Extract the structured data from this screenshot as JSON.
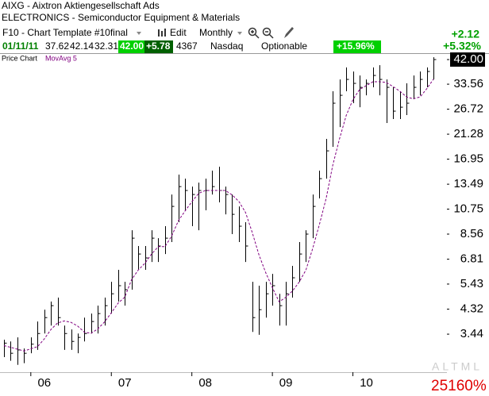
{
  "header": {
    "symbol_line": "AIXG - Aixtron Aktiengesellschaft Ads",
    "industry": "ELECTRONICS - Semiconductor Equipment & Materials",
    "template": "F10 - Chart Template #10final",
    "edit": "Edit",
    "period": "Monthly",
    "change": "+2.12",
    "change_pct": "+5.32%"
  },
  "quote": {
    "date": "01/11/11",
    "open": "37.62",
    "high": "42.14",
    "low": "32.31",
    "last": "42.00",
    "net": "+5.78",
    "volume": "4367",
    "exchange": "Nasdaq",
    "option": "Optionable",
    "pct": "+15.96%"
  },
  "footer": {
    "tools": "ALTML",
    "score": "25160%"
  },
  "chart_data": {
    "type": "ohlc",
    "categories": [
      null,
      null,
      null,
      null,
      "06",
      null,
      null,
      null,
      null,
      null,
      null,
      null,
      null,
      null,
      null,
      null,
      "07",
      null,
      null,
      null,
      null,
      null,
      null,
      null,
      null,
      null,
      null,
      null,
      "08",
      null,
      null,
      null,
      null,
      null,
      null,
      null,
      null,
      null,
      null,
      null,
      "09",
      null,
      null,
      null,
      null,
      null,
      null,
      null,
      null,
      null,
      null,
      null,
      "10",
      null,
      null,
      null,
      null,
      null,
      null,
      null,
      null,
      null,
      null,
      null,
      null
    ],
    "series": [
      {
        "name": "Price Chart",
        "color": "#000000",
        "high": [
          3.27,
          3.22,
          3.34,
          3.02,
          3.34,
          3.86,
          4.3,
          4.63,
          4.8,
          3.72,
          3.59,
          3.46,
          4.0,
          4.15,
          4.46,
          4.8,
          5.54,
          6.18,
          5.54,
          8.87,
          7.68,
          7.68,
          8.87,
          8.25,
          9.2,
          12.28,
          14.72,
          14.19,
          13.2,
          13.69,
          14.19,
          15.26,
          15.82,
          13.2,
          12.28,
          11.02,
          9.54,
          5.54,
          5.35,
          5.54,
          5.96,
          4.97,
          5.54,
          6.41,
          7.96,
          8.87,
          12.28,
          15.26,
          20.38,
          31.45,
          35.05,
          39.07,
          37.68,
          36.34,
          35.05,
          39.07,
          39.9,
          35.05,
          32.61,
          31.45,
          33.81,
          36.34,
          37.68,
          39.07,
          42.9
        ],
        "low": [
          2.79,
          2.7,
          2.6,
          2.64,
          2.89,
          2.98,
          3.46,
          3.72,
          3.72,
          2.98,
          2.98,
          2.89,
          3.22,
          3.46,
          3.46,
          3.72,
          4.15,
          4.63,
          4.46,
          5.16,
          6.18,
          6.18,
          6.64,
          6.64,
          7.14,
          7.96,
          9.54,
          10.63,
          9.2,
          8.87,
          10.63,
          12.28,
          11.43,
          10.25,
          8.56,
          7.96,
          6.64,
          3.51,
          3.42,
          4.0,
          4.46,
          3.72,
          3.72,
          4.8,
          5.54,
          6.64,
          8.25,
          11.85,
          14.19,
          18.96,
          22.71,
          31.45,
          28.22,
          27.21,
          30.33,
          32.61,
          30.33,
          23.55,
          24.42,
          24.42,
          25.32,
          29.26,
          30.33,
          32.61,
          35.05
        ],
        "close": [
          3.17,
          2.89,
          2.98,
          2.89,
          3.14,
          3.46,
          4.0,
          4.46,
          4.0,
          3.46,
          3.22,
          3.34,
          3.46,
          3.86,
          4.15,
          4.46,
          4.97,
          5.35,
          5.16,
          8.25,
          7.14,
          6.89,
          8.25,
          7.68,
          8.25,
          11.02,
          13.2,
          12.74,
          12.28,
          12.74,
          12.74,
          13.2,
          12.74,
          12.28,
          10.25,
          9.2,
          7.68,
          4.0,
          4.3,
          4.97,
          5.35,
          4.46,
          4.97,
          5.75,
          7.14,
          8.56,
          11.02,
          14.19,
          18.28,
          28.22,
          30.33,
          35.05,
          33.81,
          32.61,
          33.81,
          36.34,
          35.05,
          32.61,
          26.25,
          27.21,
          28.22,
          32.61,
          35.05,
          37.68,
          42.0
        ]
      },
      {
        "name": "MovAvg 5",
        "color": "#800080",
        "values": [
          3.1,
          3.05,
          3.0,
          2.95,
          3.01,
          3.07,
          3.29,
          3.59,
          3.81,
          3.88,
          3.83,
          3.7,
          3.5,
          3.47,
          3.61,
          3.85,
          4.18,
          4.56,
          4.82,
          5.64,
          6.17,
          6.56,
          7.14,
          7.64,
          7.64,
          8.42,
          9.68,
          10.58,
          11.5,
          12.4,
          12.74,
          12.74,
          12.74,
          12.74,
          12.24,
          11.53,
          10.43,
          8.68,
          7.09,
          6.03,
          5.26,
          4.62,
          4.81,
          5.1,
          5.53,
          6.18,
          7.49,
          9.33,
          11.84,
          16.05,
          20.41,
          25.21,
          29.14,
          32.0,
          33.12,
          34.32,
          34.32,
          34.08,
          32.81,
          31.49,
          29.87,
          29.38,
          29.87,
          32.15,
          35.11
        ]
      }
    ],
    "ylim": [
      2.45,
      44.2
    ],
    "log_scale": true,
    "yticks": [
      3.44,
      4.32,
      5.43,
      6.81,
      8.56,
      10.75,
      13.49,
      16.95,
      21.28,
      26.72,
      33.56,
      {
        "value": 42,
        "label": "42.00"
      }
    ]
  }
}
